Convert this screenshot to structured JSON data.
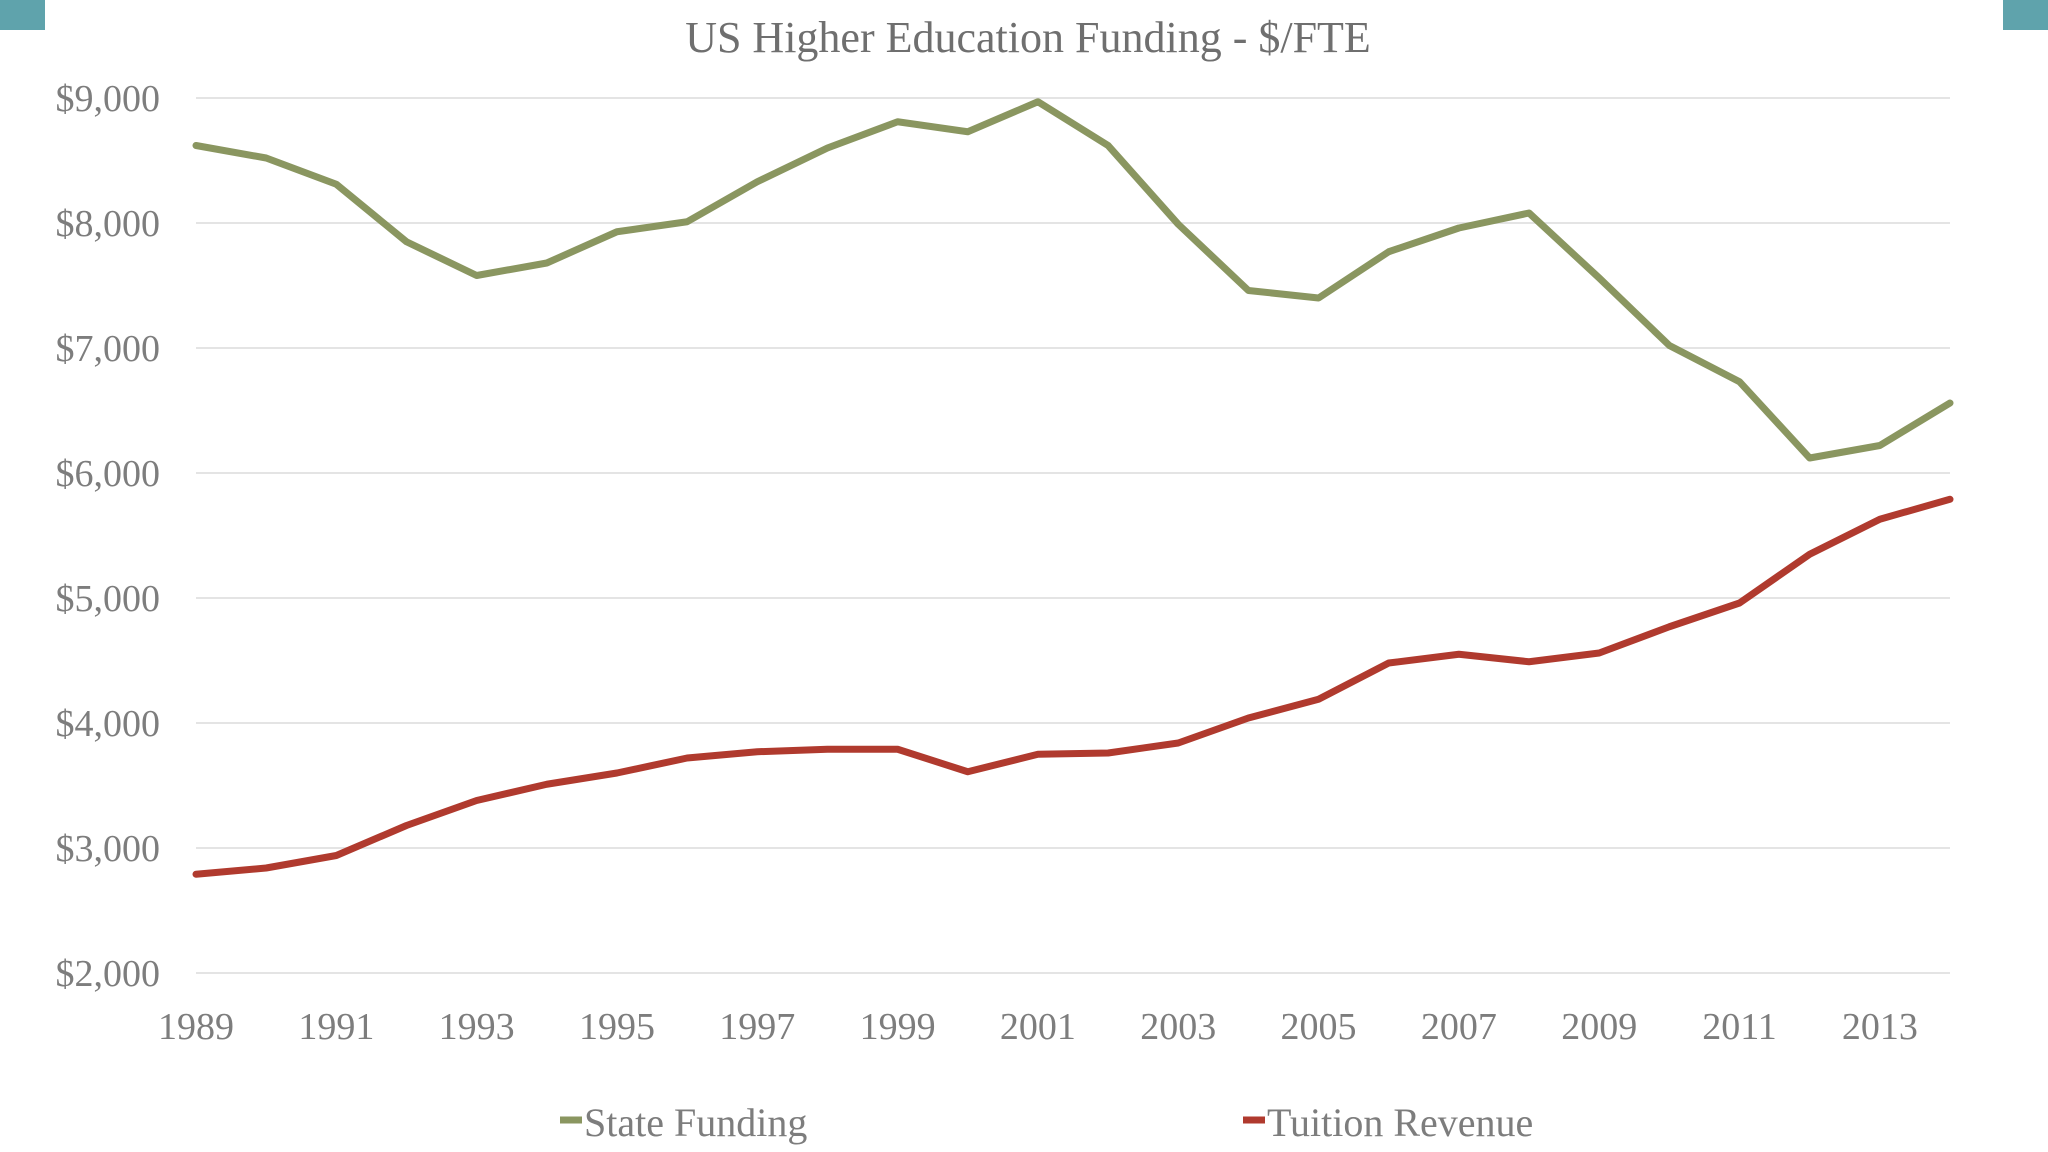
{
  "corner_accent_color": "#5fa3ac",
  "chart_data": {
    "type": "line",
    "title": "US Higher Education Funding - $/FTE",
    "xlabel": "",
    "ylabel": "",
    "x": [
      1989,
      1990,
      1991,
      1992,
      1993,
      1994,
      1995,
      1996,
      1997,
      1998,
      1999,
      2000,
      2001,
      2002,
      2003,
      2004,
      2005,
      2006,
      2007,
      2008,
      2009,
      2010,
      2011,
      2012,
      2013,
      2014
    ],
    "x_tick_labels": [
      "1989",
      "1991",
      "1993",
      "1995",
      "1997",
      "1999",
      "2001",
      "2003",
      "2005",
      "2007",
      "2009",
      "2011",
      "2013"
    ],
    "ylim": [
      2000,
      9000
    ],
    "y_tick_labels": [
      "$9,000",
      "$8,000",
      "$7,000",
      "$6,000",
      "$5,000",
      "$4,000",
      "$3,000",
      "$2,000"
    ],
    "y_ticks": [
      9000,
      8000,
      7000,
      6000,
      5000,
      4000,
      3000,
      2000
    ],
    "grid": true,
    "legend_position": "bottom",
    "series": [
      {
        "name": "State Funding",
        "color": "#8a9660",
        "values": [
          8620,
          8520,
          8310,
          7850,
          7580,
          7680,
          7930,
          8010,
          8330,
          8600,
          8810,
          8730,
          8970,
          8620,
          7990,
          7460,
          7400,
          7770,
          7960,
          8080,
          7560,
          7020,
          6730,
          6120,
          6220,
          6560
        ]
      },
      {
        "name": "Tuition Revenue",
        "color": "#b03a2e",
        "values": [
          2790,
          2840,
          2940,
          3180,
          3380,
          3510,
          3600,
          3720,
          3770,
          3790,
          3790,
          3610,
          3750,
          3760,
          3840,
          4040,
          4190,
          4480,
          4550,
          4490,
          4560,
          4770,
          4960,
          5350,
          5630,
          5790
        ]
      }
    ]
  }
}
